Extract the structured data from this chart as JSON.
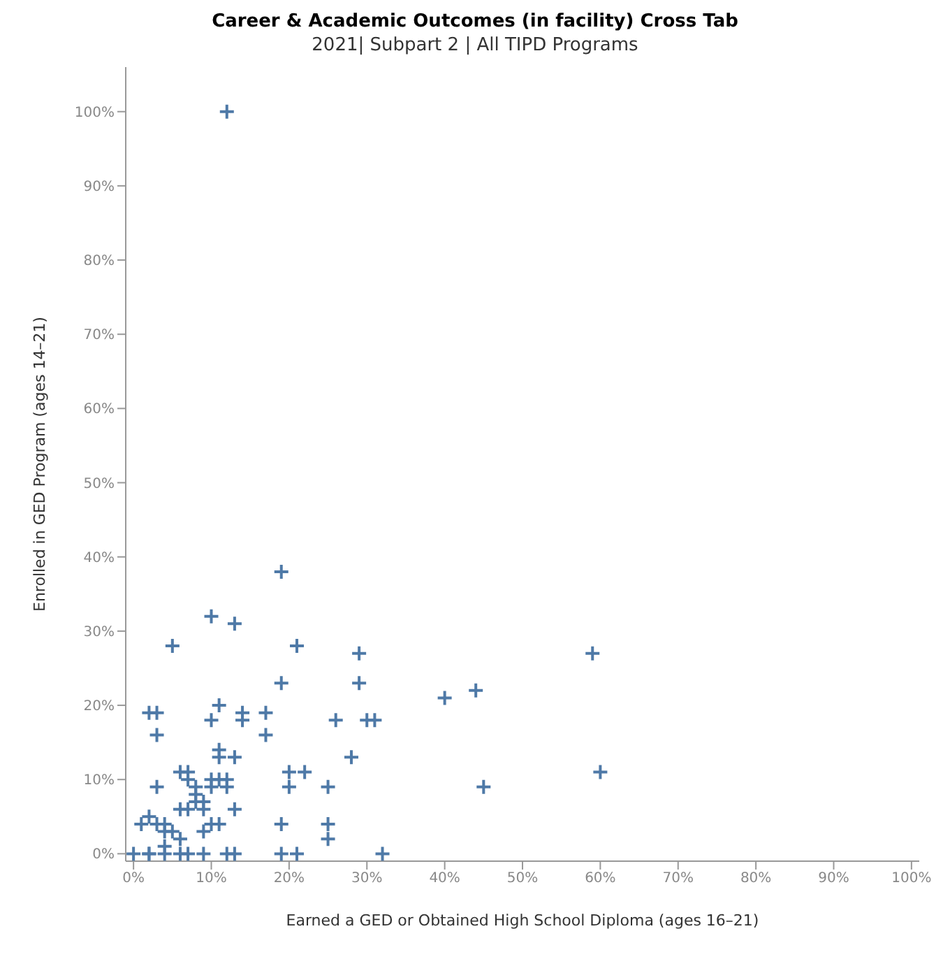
{
  "chart_data": {
    "type": "scatter",
    "title": "Career & Academic Outcomes (in facility) Cross Tab",
    "subtitle": "2021| Subpart 2 | All TIPD Programs",
    "xlabel": "Earned a GED or Obtained High School Diploma (ages 16–21)",
    "ylabel": "Enrolled in GED Program (ages 14–21)",
    "x": [
      12,
      19,
      10,
      13,
      5,
      21,
      29,
      19,
      29,
      11,
      2,
      3,
      10,
      14,
      14,
      17,
      3,
      26,
      30,
      31,
      11,
      11,
      17,
      13,
      28,
      6,
      7,
      8,
      8,
      8,
      7,
      10,
      10,
      11,
      12,
      12,
      9,
      3,
      6,
      7,
      9,
      13,
      10,
      11,
      9,
      1,
      2,
      3,
      4,
      5,
      6,
      4,
      4,
      0,
      2,
      2,
      4,
      6,
      7,
      9,
      12,
      13,
      19,
      19,
      21,
      20,
      22,
      20,
      25,
      25,
      25,
      32,
      60,
      45,
      40,
      44,
      59
    ],
    "values": [
      100,
      38,
      32,
      31,
      28,
      28,
      27,
      23,
      23,
      20,
      19,
      19,
      18,
      19,
      18,
      19,
      16,
      18,
      18,
      18,
      14,
      13,
      16,
      13,
      13,
      11,
      11,
      9,
      8,
      7,
      10,
      9,
      10,
      10,
      10,
      9,
      7,
      9,
      6,
      6,
      6,
      6,
      4,
      4,
      3,
      4,
      5,
      4,
      4,
      3,
      2,
      3,
      1,
      0,
      0,
      0,
      0,
      0,
      0,
      0,
      0,
      0,
      4,
      0,
      0,
      11,
      11,
      9,
      9,
      4,
      2,
      0,
      11,
      9,
      21,
      22,
      27
    ],
    "color": "#4e79a7",
    "marker": "cross",
    "grid": false,
    "xlim": [
      -1,
      101
    ],
    "ylim": [
      -1,
      106
    ],
    "xticks": [
      {
        "value": 0,
        "label": "0%"
      },
      {
        "value": 10,
        "label": "10%"
      },
      {
        "value": 20,
        "label": "20%"
      },
      {
        "value": 30,
        "label": "30%"
      },
      {
        "value": 40,
        "label": "40%"
      },
      {
        "value": 50,
        "label": "50%"
      },
      {
        "value": 60,
        "label": "60%"
      },
      {
        "value": 70,
        "label": "70%"
      },
      {
        "value": 80,
        "label": "80%"
      },
      {
        "value": 90,
        "label": "90%"
      },
      {
        "value": 100,
        "label": "100%"
      }
    ],
    "yticks": [
      {
        "value": 0,
        "label": "0%"
      },
      {
        "value": 10,
        "label": "10%"
      },
      {
        "value": 20,
        "label": "20%"
      },
      {
        "value": 30,
        "label": "30%"
      },
      {
        "value": 40,
        "label": "40%"
      },
      {
        "value": 50,
        "label": "50%"
      },
      {
        "value": 60,
        "label": "60%"
      },
      {
        "value": 70,
        "label": "70%"
      },
      {
        "value": 80,
        "label": "80%"
      },
      {
        "value": 90,
        "label": "90%"
      },
      {
        "value": 100,
        "label": "100%"
      }
    ]
  }
}
